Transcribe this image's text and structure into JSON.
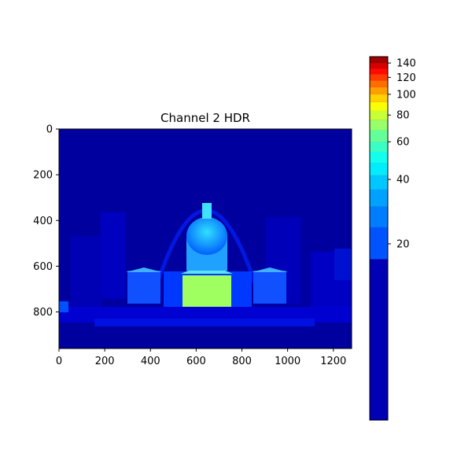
{
  "chart_data": {
    "type": "heatmap",
    "title": "Channel 2 HDR",
    "colormap": "jet",
    "xlabel": "",
    "ylabel": "",
    "xlim": [
      0,
      1280
    ],
    "ylim": [
      960,
      0
    ],
    "xticks": [
      0,
      200,
      400,
      600,
      800,
      1000,
      1200
    ],
    "yticks": [
      0,
      200,
      400,
      600,
      800
    ],
    "colorbar": {
      "scale": "log",
      "vmin": 3,
      "vmax": 150,
      "ticks": [
        20,
        40,
        60,
        80,
        100,
        120,
        140
      ]
    },
    "image_description_values": {
      "background_level": 5,
      "dome_level": 60,
      "portico_peak_level": 100
    }
  },
  "colors": {
    "background": "#00009f",
    "dark": "#0000c8",
    "mid": "#0040ff",
    "bright": "#00d0ff",
    "hot": "#c8ff30"
  }
}
